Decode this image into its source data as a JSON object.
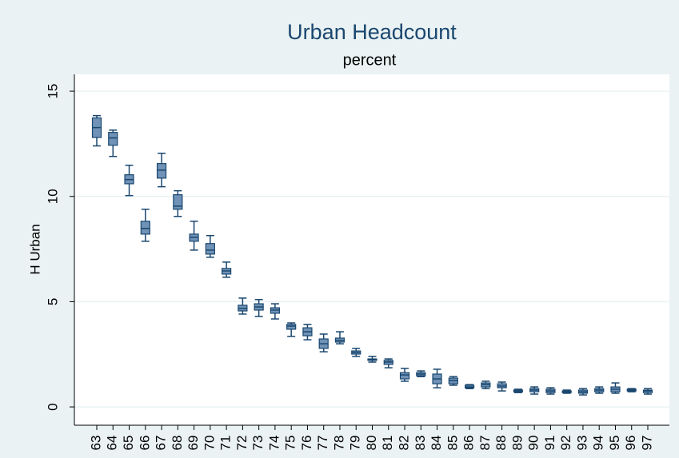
{
  "chart_data": {
    "type": "box",
    "title": "Urban Headcount",
    "subtitle": "percent",
    "y_label": "H Urban",
    "categories": [
      "63",
      "64",
      "65",
      "66",
      "67",
      "68",
      "69",
      "70",
      "71",
      "72",
      "73",
      "74",
      "75",
      "76",
      "77",
      "78",
      "79",
      "80",
      "81",
      "82",
      "83",
      "84",
      "85",
      "86",
      "87",
      "88",
      "89",
      "90",
      "91",
      "92",
      "93",
      "94",
      "95",
      "96",
      "97"
    ],
    "min": [
      12.4,
      11.9,
      10.04,
      7.87,
      10.46,
      9.05,
      7.45,
      7.11,
      6.16,
      4.41,
      4.3,
      4.18,
      3.35,
      3.19,
      2.62,
      3.0,
      2.4,
      2.13,
      1.86,
      1.22,
      1.44,
      0.91,
      1.03,
      0.87,
      0.87,
      0.76,
      0.68,
      0.61,
      0.61,
      0.65,
      0.57,
      0.65,
      0.65,
      0.72,
      0.61
    ],
    "q1": [
      12.8,
      12.43,
      10.6,
      8.21,
      10.87,
      9.39,
      7.87,
      7.26,
      6.31,
      4.56,
      4.6,
      4.45,
      3.69,
      3.38,
      2.78,
      3.08,
      2.51,
      2.21,
      2.02,
      1.33,
      1.48,
      1.1,
      1.1,
      0.91,
      0.95,
      0.91,
      0.72,
      0.72,
      0.68,
      0.68,
      0.65,
      0.72,
      0.72,
      0.76,
      0.68
    ],
    "median": [
      13.27,
      12.78,
      10.8,
      8.48,
      11.25,
      9.54,
      8.06,
      7.45,
      6.46,
      4.68,
      4.75,
      4.6,
      3.84,
      3.57,
      3.0,
      3.16,
      2.59,
      2.24,
      2.13,
      1.52,
      1.56,
      1.33,
      1.25,
      0.95,
      1.06,
      0.99,
      0.76,
      0.8,
      0.76,
      0.72,
      0.72,
      0.8,
      0.84,
      0.8,
      0.76
    ],
    "q3": [
      13.73,
      13.04,
      11.03,
      8.82,
      11.56,
      10.08,
      8.21,
      7.76,
      6.58,
      4.83,
      4.9,
      4.71,
      3.92,
      3.76,
      3.23,
      3.27,
      2.66,
      2.28,
      2.21,
      1.63,
      1.63,
      1.56,
      1.37,
      1.03,
      1.14,
      1.1,
      0.8,
      0.87,
      0.84,
      0.76,
      0.8,
      0.87,
      0.95,
      0.84,
      0.8
    ],
    "max": [
      13.84,
      13.15,
      11.48,
      9.39,
      12.05,
      10.27,
      8.82,
      8.14,
      6.88,
      5.17,
      5.1,
      4.9,
      3.99,
      3.92,
      3.46,
      3.57,
      2.78,
      2.4,
      2.28,
      1.83,
      1.71,
      1.79,
      1.44,
      1.06,
      1.22,
      1.18,
      0.84,
      0.95,
      0.91,
      0.8,
      0.87,
      0.95,
      1.14,
      0.87,
      0.87
    ],
    "color": "#6f92b6",
    "line_color": "#1a476f",
    "ylim": [
      -0.87,
      15.8
    ],
    "yticks": [
      0,
      5,
      10,
      15
    ],
    "grid": true
  }
}
